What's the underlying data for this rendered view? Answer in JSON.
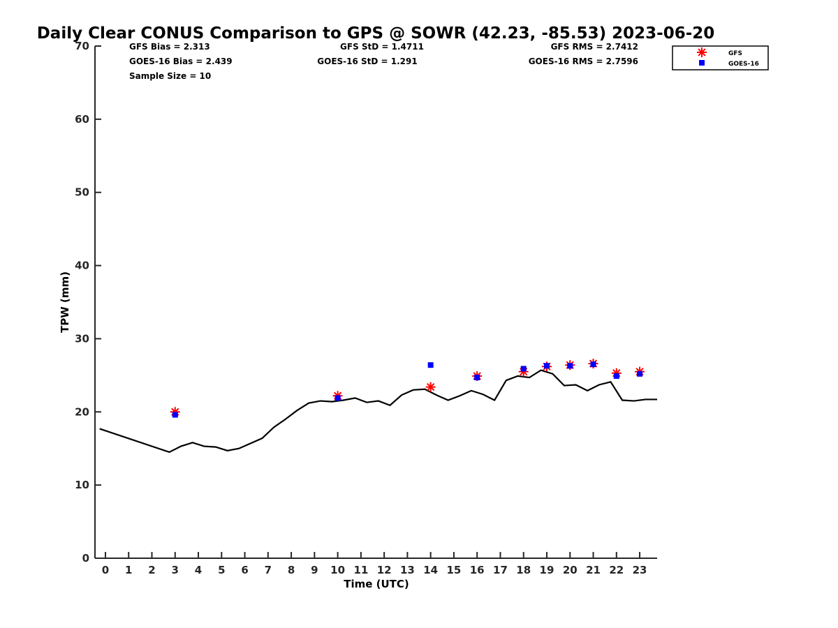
{
  "chart_data": {
    "type": "line",
    "title": "Daily Clear CONUS Comparison to GPS @ SOWR (42.23, -85.53) 2023-06-20",
    "xlabel": "Time (UTC)",
    "ylabel": "TPW (mm)",
    "xlim": [
      -0.45,
      23.75
    ],
    "ylim": [
      0,
      70
    ],
    "xticks": [
      0,
      1,
      2,
      3,
      4,
      5,
      6,
      7,
      8,
      9,
      10,
      11,
      12,
      13,
      14,
      15,
      16,
      17,
      18,
      19,
      20,
      21,
      22,
      23
    ],
    "yticks": [
      0,
      10,
      20,
      30,
      40,
      50,
      60,
      70
    ],
    "grid": false,
    "legend_position": "top-right outside",
    "stats": {
      "gfs_bias": "GFS Bias = 2.313",
      "goes_bias": "GOES-16 Bias = 2.439",
      "sample_size": "Sample Size = 10",
      "gfs_std": "GFS StD = 1.4711",
      "goes_std": "GOES-16 StD = 1.291",
      "gfs_rms": "GFS RMS = 2.7412",
      "goes_rms": "GOES-16 RMS = 2.7596"
    },
    "series": [
      {
        "name": "GPS",
        "style": "line",
        "color": "#000000",
        "x": [
          -0.25,
          2.75,
          3.25,
          3.75,
          4.25,
          4.75,
          5.25,
          5.75,
          6.25,
          6.75,
          7.25,
          7.75,
          8.25,
          8.75,
          9.25,
          9.75,
          10.25,
          10.75,
          11.25,
          11.75,
          12.25,
          12.75,
          13.25,
          13.75,
          14.25,
          14.75,
          15.25,
          15.75,
          16.25,
          16.75,
          17.25,
          17.75,
          18.25,
          18.75,
          19.25,
          19.75,
          20.25,
          20.75,
          21.25,
          21.75,
          22.25,
          22.75,
          23.25,
          23.75
        ],
        "y": [
          17.7,
          14.5,
          15.3,
          15.8,
          15.3,
          15.2,
          14.7,
          15.0,
          15.7,
          16.4,
          17.9,
          19.0,
          20.2,
          21.2,
          21.5,
          21.4,
          21.6,
          21.9,
          21.3,
          21.5,
          20.9,
          22.3,
          23.0,
          23.1,
          22.3,
          21.6,
          22.2,
          22.9,
          22.4,
          21.6,
          24.3,
          24.9,
          24.7,
          25.7,
          25.2,
          23.6,
          23.7,
          22.9,
          23.7,
          24.1,
          21.6,
          21.5,
          21.7,
          21.7
        ]
      },
      {
        "name": "GFS",
        "style": "asterisk",
        "color": "#ff0000",
        "x": [
          3,
          10,
          14,
          16,
          18,
          19,
          20,
          21,
          22,
          23
        ],
        "y": [
          20.0,
          22.2,
          23.4,
          24.9,
          25.5,
          26.2,
          26.4,
          26.6,
          25.3,
          25.5
        ]
      },
      {
        "name": "GOES-16",
        "style": "square",
        "color": "#0000ff",
        "x": [
          3,
          10,
          14,
          16,
          18,
          19,
          20,
          21,
          22,
          23
        ],
        "y": [
          19.6,
          21.9,
          26.4,
          24.7,
          25.9,
          26.3,
          26.3,
          26.5,
          24.9,
          25.2
        ]
      }
    ]
  }
}
